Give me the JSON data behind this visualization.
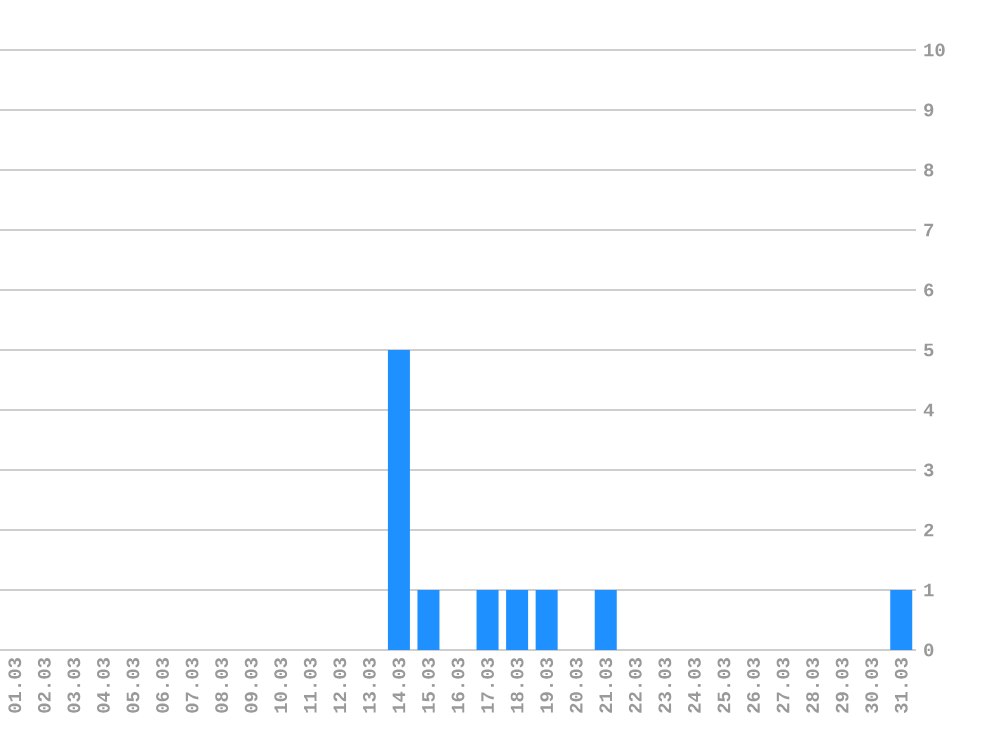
{
  "chart_data": {
    "type": "bar",
    "categories": [
      "01.03",
      "02.03",
      "03.03",
      "04.03",
      "05.03",
      "06.03",
      "07.03",
      "08.03",
      "09.03",
      "10.03",
      "11.03",
      "12.03",
      "13.03",
      "14.03",
      "15.03",
      "16.03",
      "17.03",
      "18.03",
      "19.03",
      "20.03",
      "21.03",
      "22.03",
      "23.03",
      "24.03",
      "25.03",
      "26.03",
      "27.03",
      "28.03",
      "29.03",
      "30.03",
      "31.03"
    ],
    "values": [
      0,
      0,
      0,
      0,
      0,
      0,
      0,
      0,
      0,
      0,
      0,
      0,
      0,
      5,
      1,
      0,
      1,
      1,
      1,
      0,
      1,
      0,
      0,
      0,
      0,
      0,
      0,
      0,
      0,
      0,
      1
    ],
    "color": "#1e90ff",
    "ylim": [
      0,
      10
    ],
    "yticks": [
      0,
      1,
      2,
      3,
      4,
      5,
      6,
      7,
      8,
      9,
      10
    ],
    "grid": "y"
  }
}
